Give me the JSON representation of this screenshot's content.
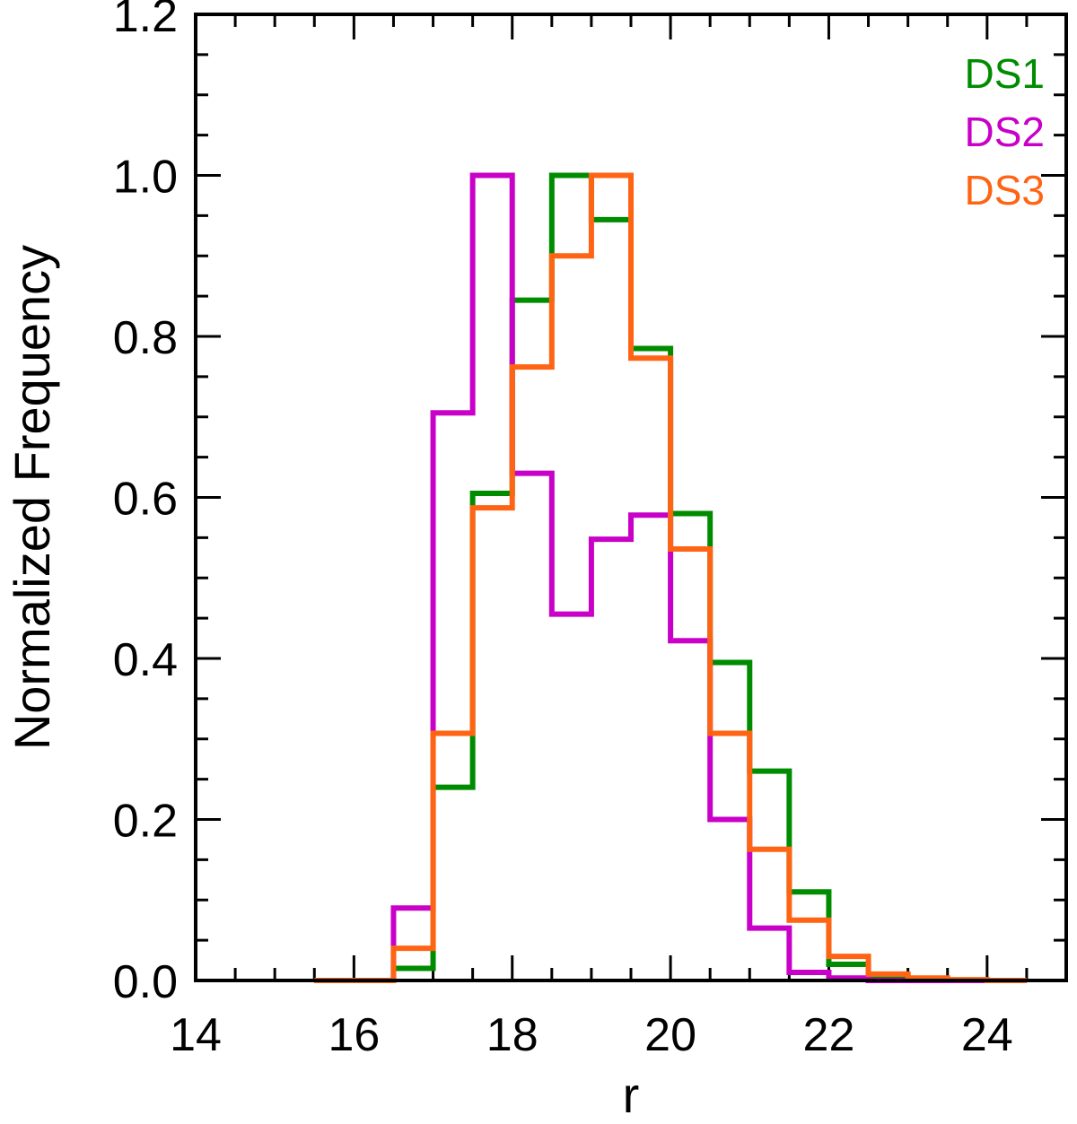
{
  "chart_data": {
    "type": "step",
    "xlabel": "r",
    "ylabel": "Normalized Frequency",
    "xlim": [
      14,
      25
    ],
    "ylim": [
      0,
      1.2
    ],
    "xticks": [
      14,
      16,
      18,
      20,
      22,
      24
    ],
    "xtick_labels": [
      "14",
      "16",
      "18",
      "20",
      "22",
      "24"
    ],
    "yticks": [
      0,
      0.2,
      0.4,
      0.6,
      0.8,
      1.0,
      1.2
    ],
    "ytick_labels": [
      "0.0",
      "0.2",
      "0.4",
      "0.6",
      "0.8",
      "1.0",
      "1.2"
    ],
    "legend_position": "top-right",
    "bin_edges": [
      15.5,
      16.0,
      16.5,
      17.0,
      17.5,
      18.0,
      18.5,
      19.0,
      19.5,
      20.0,
      20.5,
      21.0,
      21.5,
      22.0,
      22.5,
      23.0,
      23.5,
      24.0,
      24.5
    ],
    "series": [
      {
        "name": "DS1",
        "color": "#008c00",
        "values": [
          0.0,
          0.0,
          0.015,
          0.24,
          0.605,
          0.845,
          1.0,
          0.945,
          0.785,
          0.58,
          0.395,
          0.26,
          0.11,
          0.02,
          0.005,
          0.0,
          0.0,
          0.0
        ]
      },
      {
        "name": "DS2",
        "color": "#c800c8",
        "values": [
          0.0,
          0.0,
          0.09,
          0.705,
          1.0,
          0.63,
          0.455,
          0.548,
          0.578,
          0.422,
          0.2,
          0.065,
          0.01,
          0.003,
          0.0,
          0.0,
          0.0,
          0.0
        ]
      },
      {
        "name": "DS3",
        "color": "#ff6414",
        "values": [
          0.0,
          0.0,
          0.04,
          0.307,
          0.587,
          0.762,
          0.9,
          1.0,
          0.773,
          0.536,
          0.307,
          0.163,
          0.075,
          0.03,
          0.008,
          0.003,
          0.001,
          0.0
        ]
      }
    ]
  }
}
